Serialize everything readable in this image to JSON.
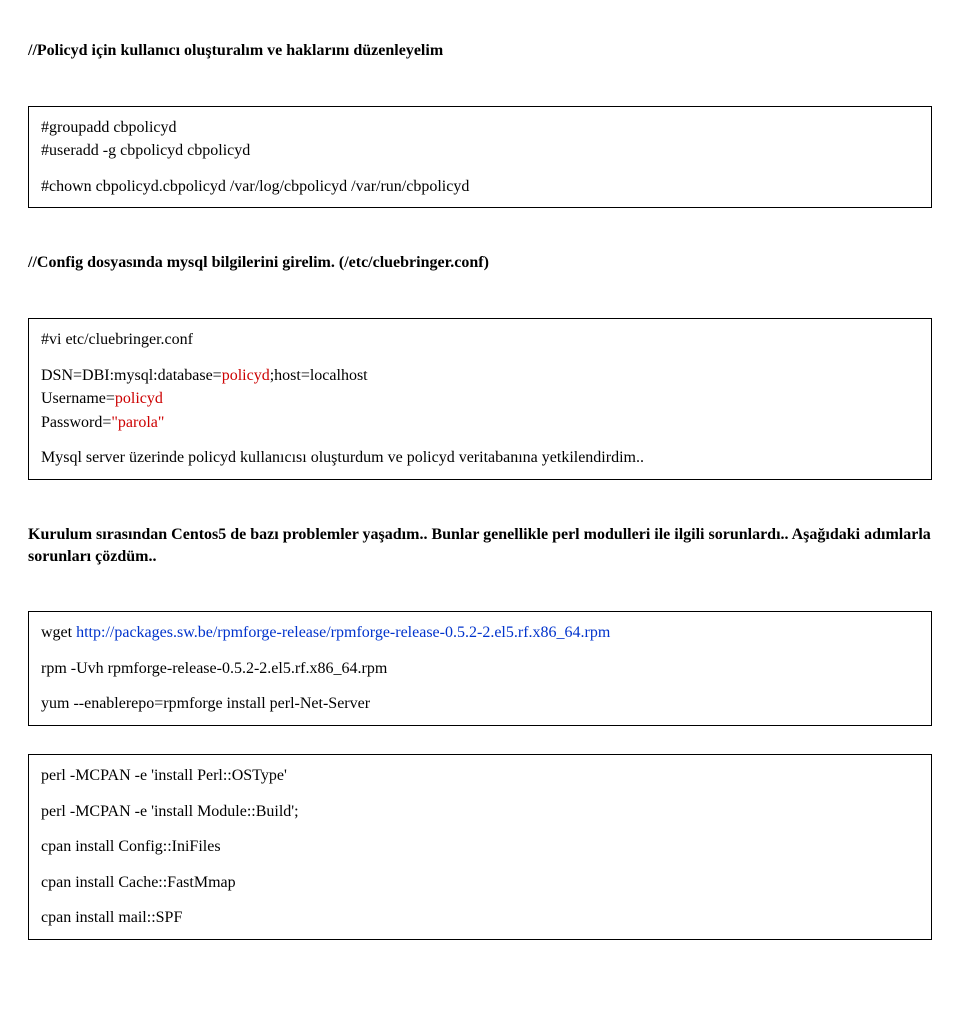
{
  "section1": {
    "heading": "//Policyd için kullanıcı oluşturalım ve haklarını düzenleyelim",
    "box": {
      "l1": "#groupadd cbpolicyd",
      "l2": "#useradd -g cbpolicyd cbpolicyd",
      "l3": "#chown cbpolicyd.cbpolicyd /var/log/cbpolicyd /var/run/cbpolicyd"
    }
  },
  "section2": {
    "heading": "//Config dosyasında mysql bilgilerini girelim. (/etc/cluebringer.conf)",
    "box": {
      "l1": "#vi etc/cluebringer.conf",
      "l2a": "DSN=DBI:mysql:database=",
      "l2b": "policyd",
      "l2c": ";host=localhost",
      "l3a": "Username=",
      "l3b": "policyd",
      "l4a": "Password=",
      "l4b": "\"parola\"",
      "l5": "Mysql server üzerinde policyd kullanıcısı oluşturdum ve policyd veritabanına yetkilendirdim.."
    }
  },
  "section3": {
    "para": "Kurulum sırasından Centos5 de bazı problemler yaşadım.. Bunlar genellikle perl modulleri ile ilgili sorunlardı.. Aşağıdaki adımlarla sorunları çözdüm..",
    "box": {
      "l1a": "wget ",
      "l1b": "http://packages.sw.be/rpmforge-release/rpmforge-release-0.5.2-2.el5.rf.x86_64.rpm",
      "l2": "rpm -Uvh rpmforge-release-0.5.2-2.el5.rf.x86_64.rpm",
      "l3": "yum --enablerepo=rpmforge install perl-Net-Server"
    }
  },
  "section4": {
    "box": {
      "l1": "perl -MCPAN -e 'install Perl::OSType'",
      "l2": "perl -MCPAN -e 'install Module::Build';",
      "l3": "cpan install Config::IniFiles",
      "l4": "cpan install Cache::FastMmap",
      "l5": "cpan install mail::SPF"
    }
  },
  "colors": {
    "red": "#cc0000",
    "blue": "#0033cc",
    "text": "#000000",
    "bg": "#ffffff",
    "border": "#000000"
  }
}
